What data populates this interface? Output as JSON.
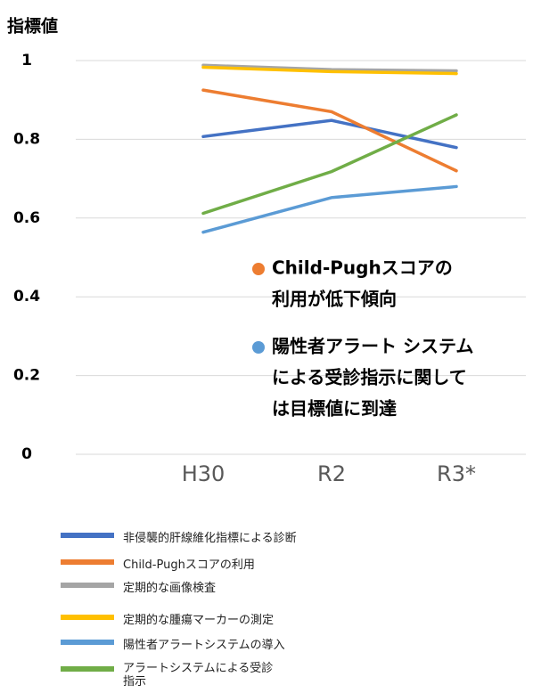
{
  "chart_data": {
    "type": "line",
    "y_label": "指標値",
    "categories": [
      "H30",
      "R2",
      "R3*"
    ],
    "ylim": [
      0,
      1
    ],
    "yticks": [
      0,
      0.2,
      0.4,
      0.6,
      0.8,
      1
    ],
    "grid": true,
    "series": [
      {
        "name": "非侵襲的肝線維化指標による診断",
        "color": "#4472c4",
        "values": [
          0.807,
          0.848,
          0.779
        ]
      },
      {
        "name": "Child-Pughスコアの利用",
        "color": "#ed7d31",
        "values": [
          0.925,
          0.87,
          0.72
        ]
      },
      {
        "name": "定期的な画像検査",
        "color": "#a5a5a5",
        "values": [
          0.988,
          0.977,
          0.974
        ]
      },
      {
        "name": "定期的な腫瘍マーカーの測定",
        "color": "#ffc000",
        "values": [
          0.983,
          0.972,
          0.967
        ]
      },
      {
        "name": "陽性者アラートシステムの導入",
        "color": "#5b9bd5",
        "values": [
          0.564,
          0.652,
          0.68
        ]
      },
      {
        "name": "アラートシステムによる受診指示",
        "color": "#70ad47",
        "values": [
          0.612,
          0.718,
          0.862
        ]
      }
    ],
    "annotations": [
      {
        "color": "#ed7d31",
        "lines": [
          "Child-Pughスコアの",
          "利用が低下傾向"
        ]
      },
      {
        "color": "#5b9bd5",
        "lines": [
          "陽性者アラート システム",
          "による受診指示に関して",
          "は目標値に到達"
        ]
      }
    ]
  }
}
